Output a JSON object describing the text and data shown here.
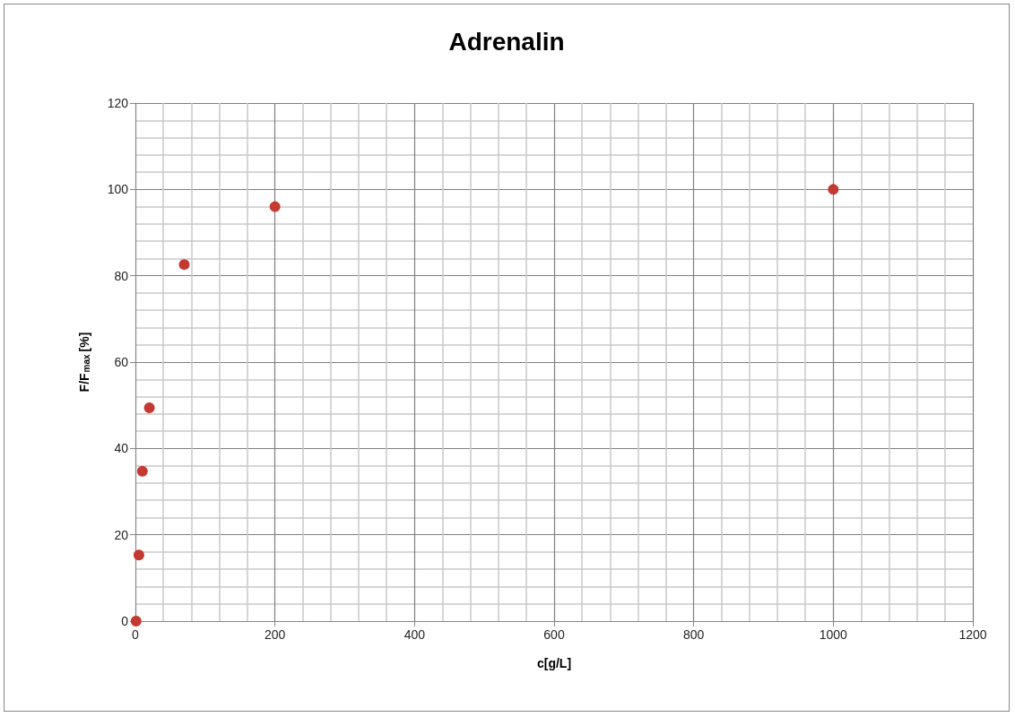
{
  "chart_data": {
    "type": "scatter",
    "title": "Adrenalin",
    "xlabel": "c[g/L]",
    "ylabel": "F/F$_{max}$[%]",
    "x": [
      1,
      5,
      10,
      20,
      70,
      200,
      1000
    ],
    "series": [
      {
        "color": "#c43a32",
        "values": [
          0,
          15.3,
          34.7,
          49.4,
          82.6,
          96,
          100
        ]
      }
    ],
    "xlim": [
      0,
      1200
    ],
    "xticks": [
      0,
      200,
      400,
      600,
      800,
      1000,
      1200
    ],
    "ylim": [
      0,
      120
    ],
    "yticks": [
      0,
      20,
      40,
      60,
      80,
      100,
      120
    ],
    "grid": true,
    "marker": "circle"
  }
}
